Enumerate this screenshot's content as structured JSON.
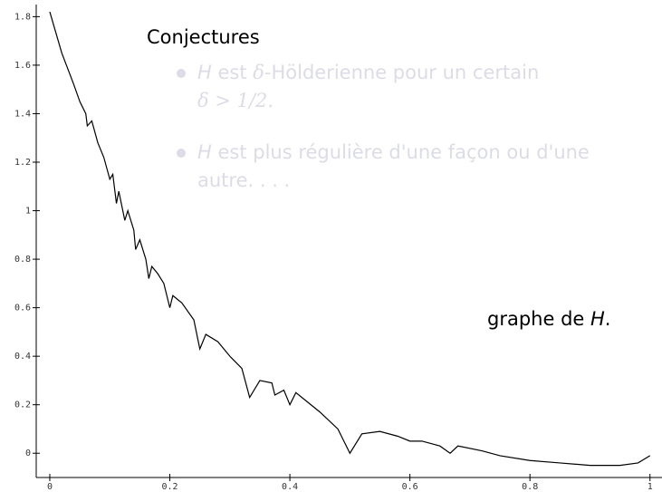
{
  "chart_data": {
    "type": "line",
    "title": "Conjectures",
    "bullets": [
      [
        "H",
        " est ",
        "δ",
        "-Hölderienne pour un certain",
        "δ > 1/2."
      ],
      [
        "H",
        " est plus régulière d'une façon ou d'une",
        "autre. . . ."
      ]
    ],
    "annotation": [
      "graphe de ",
      "H",
      "."
    ],
    "x": [
      0,
      0.02,
      0.04,
      0.05,
      0.06,
      0.0625,
      0.07,
      0.08,
      0.09,
      0.1,
      0.105,
      0.111,
      0.115,
      0.125,
      0.13,
      0.14,
      0.143,
      0.15,
      0.16,
      0.165,
      0.17,
      0.18,
      0.19,
      0.2,
      0.205,
      0.22,
      0.24,
      0.25,
      0.26,
      0.28,
      0.3,
      0.32,
      0.333,
      0.35,
      0.37,
      0.375,
      0.39,
      0.4,
      0.41,
      0.43,
      0.45,
      0.48,
      0.5,
      0.52,
      0.55,
      0.58,
      0.6,
      0.62,
      0.65,
      0.667,
      0.68,
      0.72,
      0.75,
      0.8,
      0.85,
      0.9,
      0.95,
      0.98,
      1.0
    ],
    "values": [
      1.82,
      1.65,
      1.52,
      1.45,
      1.4,
      1.35,
      1.37,
      1.28,
      1.22,
      1.13,
      1.15,
      1.03,
      1.08,
      0.96,
      1.0,
      0.92,
      0.84,
      0.88,
      0.8,
      0.72,
      0.77,
      0.74,
      0.7,
      0.6,
      0.65,
      0.62,
      0.55,
      0.43,
      0.49,
      0.46,
      0.4,
      0.35,
      0.23,
      0.3,
      0.29,
      0.24,
      0.26,
      0.2,
      0.25,
      0.21,
      0.17,
      0.1,
      0.0,
      0.08,
      0.09,
      0.07,
      0.05,
      0.05,
      0.03,
      0.0,
      0.03,
      0.01,
      -0.01,
      -0.03,
      -0.04,
      -0.05,
      -0.05,
      -0.04,
      -0.01
    ],
    "color": "#000000",
    "xlim": [
      -0.0226,
      1.02
    ],
    "ylim": [
      -0.1,
      1.85
    ],
    "xticks": [
      0,
      0.2,
      0.4,
      0.6,
      0.8,
      1
    ],
    "yticks": [
      0,
      0.2,
      0.4,
      0.6,
      0.8,
      1,
      1.2,
      1.4,
      1.6,
      1.8
    ]
  }
}
